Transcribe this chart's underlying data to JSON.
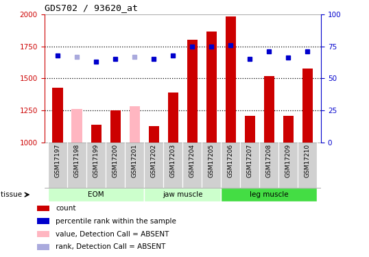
{
  "title": "GDS702 / 93620_at",
  "samples": [
    "GSM17197",
    "GSM17198",
    "GSM17199",
    "GSM17200",
    "GSM17201",
    "GSM17202",
    "GSM17203",
    "GSM17204",
    "GSM17205",
    "GSM17206",
    "GSM17207",
    "GSM17208",
    "GSM17209",
    "GSM17210"
  ],
  "bar_values": [
    1430,
    1260,
    1140,
    1250,
    1285,
    1130,
    1390,
    1800,
    1865,
    1980,
    1210,
    1520,
    1210,
    1575
  ],
  "bar_absent": [
    false,
    true,
    false,
    false,
    true,
    false,
    false,
    false,
    false,
    false,
    false,
    false,
    false,
    false
  ],
  "rank_values": [
    68,
    67,
    63,
    65,
    67,
    65,
    68,
    75,
    75,
    76,
    65,
    71,
    66,
    71
  ],
  "rank_absent": [
    false,
    true,
    false,
    false,
    true,
    false,
    false,
    false,
    false,
    false,
    false,
    false,
    false,
    false
  ],
  "ylim_left": [
    1000,
    2000
  ],
  "ylim_right": [
    0,
    100
  ],
  "yticks_left": [
    1000,
    1250,
    1500,
    1750,
    2000
  ],
  "yticks_right": [
    0,
    25,
    50,
    75,
    100
  ],
  "bar_color_present": "#cc0000",
  "bar_color_absent": "#ffb6c1",
  "dot_color_present": "#0000cc",
  "dot_color_absent": "#aaaadd",
  "plot_bg_color": "#ffffff",
  "title_color": "#cc0000",
  "left_axis_color": "#cc0000",
  "right_axis_color": "#0000cc",
  "xticklabel_bg": "#d0d0d0",
  "group_colors": [
    "#ccffcc",
    "#ccffcc",
    "#44dd44"
  ],
  "group_labels": [
    "EOM",
    "jaw muscle",
    "leg muscle"
  ],
  "group_ranges": [
    [
      0,
      4
    ],
    [
      5,
      8
    ],
    [
      9,
      13
    ]
  ],
  "dotted_line_color": "#000000",
  "legend_items": [
    {
      "label": "count",
      "color": "#cc0000",
      "type": "square"
    },
    {
      "label": "percentile rank within the sample",
      "color": "#0000cc",
      "type": "square"
    },
    {
      "label": "value, Detection Call = ABSENT",
      "color": "#ffb6c1",
      "type": "square"
    },
    {
      "label": "rank, Detection Call = ABSENT",
      "color": "#aaaadd",
      "type": "square"
    }
  ]
}
